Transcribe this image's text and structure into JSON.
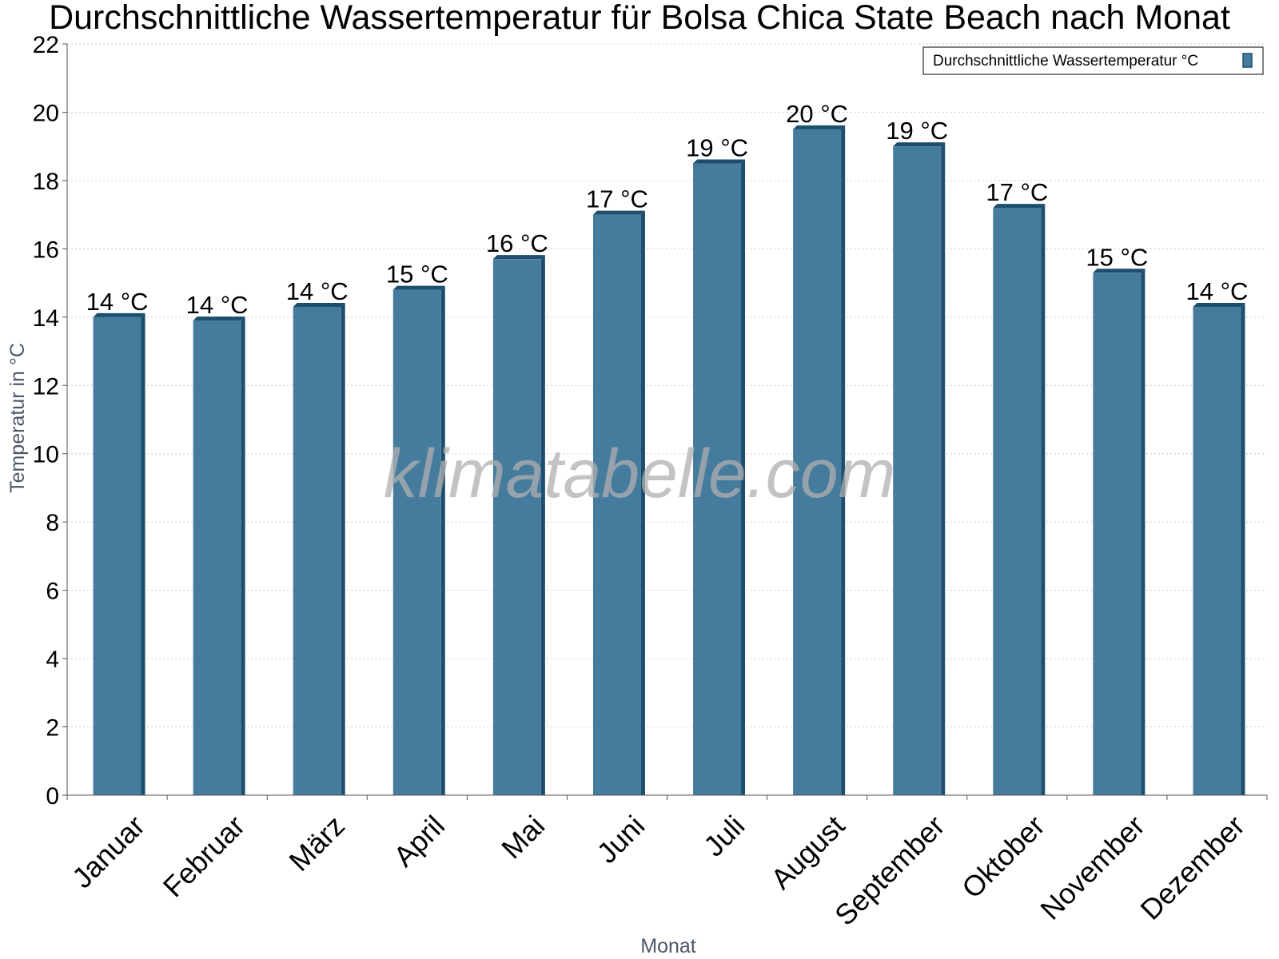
{
  "chart_data": {
    "type": "bar",
    "title": "Durchschnittliche Wassertemperatur für Bolsa Chica State Beach nach Monat",
    "xlabel": "Monat",
    "ylabel": "Temperatur in °C",
    "categories": [
      "Januar",
      "Februar",
      "März",
      "April",
      "Mai",
      "Juni",
      "Juli",
      "August",
      "September",
      "Oktober",
      "November",
      "Dezember"
    ],
    "series": [
      {
        "name": "Durchschnittliche Wassertemperatur °C",
        "values": [
          14.0,
          13.9,
          14.3,
          14.8,
          15.7,
          17.0,
          18.5,
          19.5,
          19.0,
          17.2,
          15.3,
          14.3
        ]
      }
    ],
    "data_labels": [
      "14 °C",
      "14 °C",
      "14 °C",
      "15 °C",
      "16 °C",
      "17 °C",
      "19 °C",
      "20 °C",
      "19 °C",
      "17 °C",
      "15 °C",
      "14 °C"
    ],
    "ylim": [
      0,
      22
    ],
    "yticks": [
      0,
      2,
      4,
      6,
      8,
      10,
      12,
      14,
      16,
      18,
      20,
      22
    ],
    "grid": true,
    "legend_position": "top-right",
    "watermark": "klimatabelle.com",
    "colors": {
      "bar": "#457b9d",
      "bar_shade": "#1d4e6e",
      "grid": "#cccccc",
      "axis": "#555555"
    }
  }
}
